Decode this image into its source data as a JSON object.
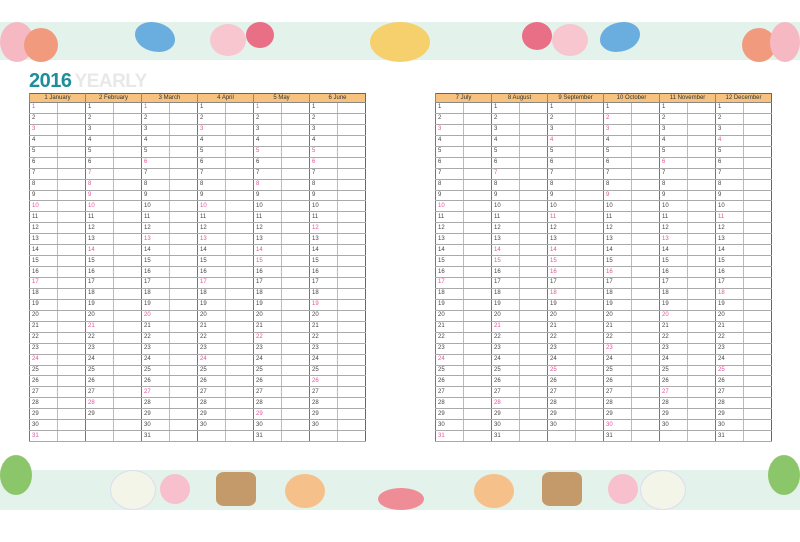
{
  "title": {
    "year": "2016",
    "label": "YEARLY"
  },
  "colors": {
    "header": "#f6c27e",
    "holiday": "#e0559a",
    "year": "#1d8e9a"
  },
  "left": {
    "months": [
      {
        "label": "1 January",
        "days": 31,
        "holidays": [
          1,
          3,
          10,
          17,
          24,
          31
        ]
      },
      {
        "label": "2 February",
        "days": 29,
        "holidays": [
          7,
          8,
          9,
          10,
          14,
          21,
          28
        ]
      },
      {
        "label": "3 March",
        "days": 31,
        "holidays": [
          1,
          6,
          13,
          20,
          27
        ]
      },
      {
        "label": "4 April",
        "days": 30,
        "holidays": [
          3,
          10,
          13,
          17,
          24
        ]
      },
      {
        "label": "5 May",
        "days": 31,
        "holidays": [
          1,
          5,
          8,
          14,
          15,
          22,
          29
        ]
      },
      {
        "label": "6 June",
        "days": 30,
        "holidays": [
          5,
          6,
          12,
          19,
          26
        ]
      }
    ]
  },
  "right": {
    "months": [
      {
        "label": "7 July",
        "days": 31,
        "holidays": [
          3,
          10,
          17,
          24,
          31
        ]
      },
      {
        "label": "8 August",
        "days": 31,
        "holidays": [
          7,
          14,
          15,
          21,
          28
        ]
      },
      {
        "label": "9 September",
        "days": 30,
        "holidays": [
          4,
          11,
          14,
          15,
          16,
          18,
          25
        ]
      },
      {
        "label": "10 October",
        "days": 31,
        "holidays": [
          2,
          3,
          9,
          16,
          23,
          30
        ]
      },
      {
        "label": "11 November",
        "days": 30,
        "holidays": [
          6,
          13,
          20,
          27
        ]
      },
      {
        "label": "12 December",
        "days": 31,
        "holidays": [
          4,
          11,
          18,
          25
        ]
      }
    ]
  }
}
